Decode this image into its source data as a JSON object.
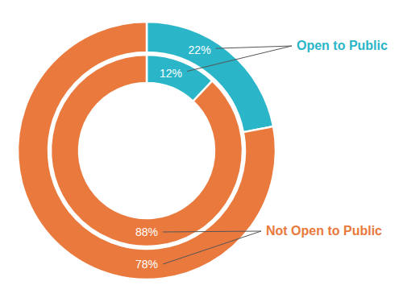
{
  "chart_data": {
    "type": "donut",
    "categories": [
      "Open to Public",
      "Not Open to Public"
    ],
    "colors": [
      "#2bb5c8",
      "#e9793d"
    ],
    "series": [
      {
        "values": [
          22,
          78
        ],
        "value_labels": [
          "22%",
          "78%"
        ]
      },
      {
        "values": [
          12,
          88
        ],
        "value_labels": [
          "12%",
          "88%"
        ]
      }
    ],
    "data_labels": true
  }
}
